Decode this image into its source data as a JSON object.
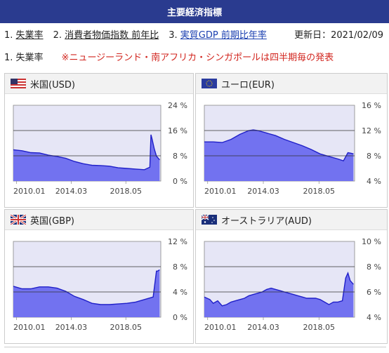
{
  "header": {
    "title": "主要経済指標"
  },
  "nav": {
    "items": [
      {
        "num": "1.",
        "label": "失業率"
      },
      {
        "num": "2.",
        "label": "消費者物価指数 前年比"
      },
      {
        "num": "3.",
        "label": "実質GDP 前期比年率"
      }
    ],
    "updated": "更新日：2021/02/09"
  },
  "section": {
    "title": "1. 失業率",
    "note": "※ニュージーランド・南アフリカ・シンガポールは四半期毎の発表"
  },
  "colors": {
    "header_bg": "#2a3b8f",
    "area_fill": "#7272f0",
    "line": "#1f1fc8",
    "plot_bg": "#e6e6f6",
    "note": "#d2261f"
  },
  "panels": [
    {
      "name": "米国(USD)",
      "flag": "us-flag-icon"
    },
    {
      "name": "ユーロ(EUR)",
      "flag": "eu-flag-icon"
    },
    {
      "name": "英国(GBP)",
      "flag": "uk-flag-icon"
    },
    {
      "name": "オーストラリア(AUD)",
      "flag": "au-flag-icon"
    }
  ],
  "chart_data": [
    {
      "type": "area",
      "ylim": [
        0,
        24
      ],
      "yticks": [
        "24 %",
        "16 %",
        "8 %",
        "0 %"
      ],
      "xticks": [
        "2010.01",
        "2014.03",
        "2018.05"
      ],
      "x": [
        "2009.10",
        "2010.06",
        "2011.02",
        "2011.10",
        "2012.06",
        "2013.02",
        "2013.10",
        "2014.06",
        "2015.02",
        "2015.10",
        "2016.06",
        "2017.02",
        "2017.10",
        "2018.06",
        "2019.02",
        "2019.10",
        "2020.03",
        "2020.04",
        "2020.05",
        "2020.07",
        "2020.09",
        "2020.12"
      ],
      "values": [
        9.9,
        9.6,
        9.0,
        8.9,
        8.2,
        7.8,
        7.2,
        6.2,
        5.5,
        5.0,
        4.9,
        4.7,
        4.2,
        4.0,
        3.8,
        3.6,
        4.4,
        14.7,
        13.3,
        10.2,
        7.9,
        6.7
      ]
    },
    {
      "type": "area",
      "ylim": [
        4,
        16
      ],
      "yticks": [
        "16 %",
        "12 %",
        "8 %",
        "4 %"
      ],
      "xticks": [
        "2010.01",
        "2014.03",
        "2018.05"
      ],
      "x": [
        "2009.10",
        "2010.06",
        "2011.02",
        "2011.10",
        "2012.06",
        "2013.02",
        "2013.06",
        "2013.10",
        "2014.06",
        "2015.02",
        "2015.10",
        "2016.06",
        "2017.02",
        "2017.10",
        "2018.06",
        "2019.02",
        "2019.10",
        "2020.03",
        "2020.07",
        "2020.10",
        "2020.12"
      ],
      "values": [
        10.2,
        10.2,
        10.1,
        10.6,
        11.4,
        12.0,
        12.1,
        12.0,
        11.6,
        11.2,
        10.6,
        10.1,
        9.6,
        9.0,
        8.3,
        7.9,
        7.5,
        7.2,
        8.5,
        8.4,
        8.3
      ]
    },
    {
      "type": "area",
      "ylim": [
        0,
        12
      ],
      "yticks": [
        "12 %",
        "8 %",
        "4 %",
        "0 %"
      ],
      "xticks": [
        "2010.01",
        "2014.03",
        "2018.05"
      ],
      "x": [
        "2009.10",
        "2010.06",
        "2011.02",
        "2011.10",
        "2012.06",
        "2013.02",
        "2013.10",
        "2014.06",
        "2015.02",
        "2015.10",
        "2016.06",
        "2017.02",
        "2017.10",
        "2018.06",
        "2019.02",
        "2019.10",
        "2020.06",
        "2020.09",
        "2020.10",
        "2020.12"
      ],
      "values": [
        4.9,
        4.5,
        4.5,
        4.8,
        4.8,
        4.6,
        4.1,
        3.3,
        2.8,
        2.2,
        2.0,
        2.0,
        2.1,
        2.2,
        2.4,
        2.8,
        3.2,
        7.3,
        7.3,
        7.5
      ]
    },
    {
      "type": "area",
      "ylim": [
        4,
        10
      ],
      "yticks": [
        "10 %",
        "8 %",
        "6 %",
        "4 %"
      ],
      "xticks": [
        "2010.01",
        "2014.03",
        "2018.05"
      ],
      "x": [
        "2009.10",
        "2010.03",
        "2010.06",
        "2010.10",
        "2011.02",
        "2011.06",
        "2011.10",
        "2012.02",
        "2012.06",
        "2012.10",
        "2013.02",
        "2013.06",
        "2013.10",
        "2014.02",
        "2014.06",
        "2014.10",
        "2015.02",
        "2015.06",
        "2015.10",
        "2016.02",
        "2016.06",
        "2016.10",
        "2017.02",
        "2017.06",
        "2017.10",
        "2018.02",
        "2018.06",
        "2018.10",
        "2019.02",
        "2019.06",
        "2019.10",
        "2020.02",
        "2020.05",
        "2020.07",
        "2020.09",
        "2020.12"
      ],
      "values": [
        5.6,
        5.4,
        5.1,
        5.3,
        4.9,
        5.0,
        5.2,
        5.3,
        5.4,
        5.5,
        5.7,
        5.8,
        5.9,
        6.0,
        6.2,
        6.3,
        6.2,
        6.1,
        6.0,
        5.9,
        5.8,
        5.7,
        5.6,
        5.5,
        5.5,
        5.5,
        5.4,
        5.2,
        5.0,
        5.2,
        5.2,
        5.3,
        7.1,
        7.5,
        6.9,
        6.6
      ]
    }
  ]
}
